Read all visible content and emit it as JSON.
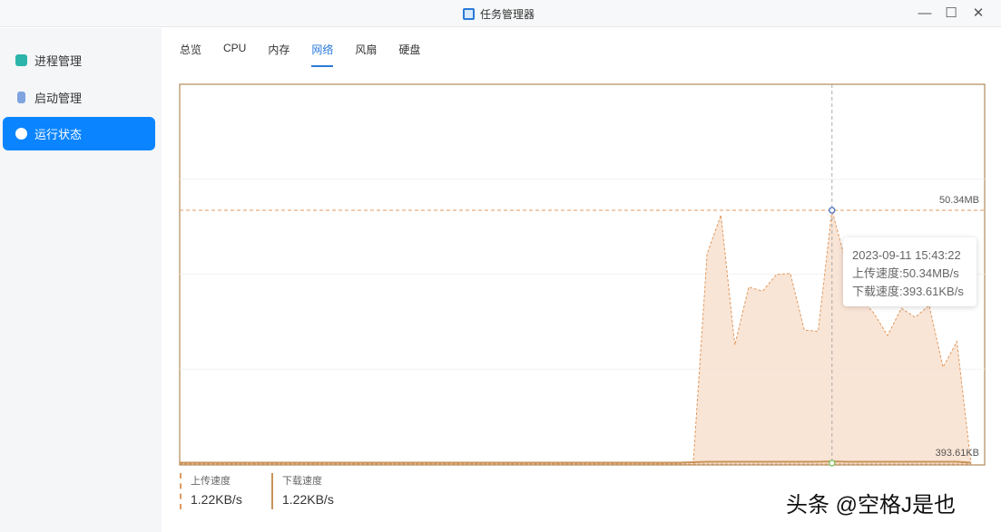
{
  "window": {
    "title": "任务管理器",
    "icon": "app-window-icon",
    "controls": [
      "minimize-icon",
      "maximize-icon",
      "close-icon"
    ]
  },
  "sidebar": {
    "items": [
      {
        "label": "进程管理",
        "icon": "process-icon",
        "active": false
      },
      {
        "label": "启动管理",
        "icon": "startup-icon",
        "active": false
      },
      {
        "label": "运行状态",
        "icon": "gauge-icon",
        "active": true
      }
    ],
    "accent": "#0a84ff"
  },
  "tabs": [
    {
      "label": "总览"
    },
    {
      "label": "CPU"
    },
    {
      "label": "内存"
    },
    {
      "label": "网络",
      "active": true
    },
    {
      "label": "风扇"
    },
    {
      "label": "硬盘"
    }
  ],
  "chart_data": {
    "type": "area",
    "ymax_label": "50.34MB",
    "ymin_label": "393.61KB",
    "ylim": [
      0,
      50.34
    ],
    "xlim": [
      0,
      58
    ],
    "series": [
      {
        "name": "上传速度",
        "color": "#e09a60",
        "values": [
          0,
          0,
          0,
          0,
          0,
          0,
          0,
          0,
          0,
          0,
          0,
          0,
          0,
          0,
          0,
          0,
          0,
          0,
          0,
          0,
          0,
          0,
          0,
          0,
          0,
          0,
          0,
          0,
          0,
          0,
          0,
          0,
          0,
          0,
          0,
          0,
          0,
          0,
          41.7,
          49.4,
          23.6,
          35.1,
          34.3,
          37.6,
          37.8,
          26.6,
          26.3,
          50.34,
          40,
          33,
          30,
          25.5,
          30.9,
          29.1,
          31.5,
          19.2,
          24.3,
          0.4
        ]
      },
      {
        "name": "下载速度",
        "color": "#c8935a",
        "values": [
          0.1,
          0.1,
          0.1,
          0.1,
          0.1,
          0.1,
          0.1,
          0.1,
          0.1,
          0.1,
          0.1,
          0.1,
          0.1,
          0.1,
          0.1,
          0.1,
          0.1,
          0.1,
          0.1,
          0.1,
          0.1,
          0.1,
          0.1,
          0.1,
          0.1,
          0.1,
          0.1,
          0.1,
          0.1,
          0.1,
          0.1,
          0.1,
          0.1,
          0.1,
          0.1,
          0.1,
          0.1,
          0.2,
          0.3,
          0.3,
          0.3,
          0.3,
          0.3,
          0.3,
          0.3,
          0.3,
          0.3,
          0.38,
          0.3,
          0.3,
          0.3,
          0.3,
          0.3,
          0.3,
          0.3,
          0.3,
          0.3,
          0.1
        ]
      }
    ],
    "hover_index": 47,
    "tooltip": {
      "time": "2023-09-11 15:43:22",
      "upload": "上传速度:50.34MB/s",
      "download": "下载速度:393.61KB/s"
    }
  },
  "legend": [
    {
      "label": "上传速度",
      "value": "1.22KB/s"
    },
    {
      "label": "下载速度",
      "value": "1.22KB/s"
    }
  ],
  "watermark": "头条 @空格J是也"
}
